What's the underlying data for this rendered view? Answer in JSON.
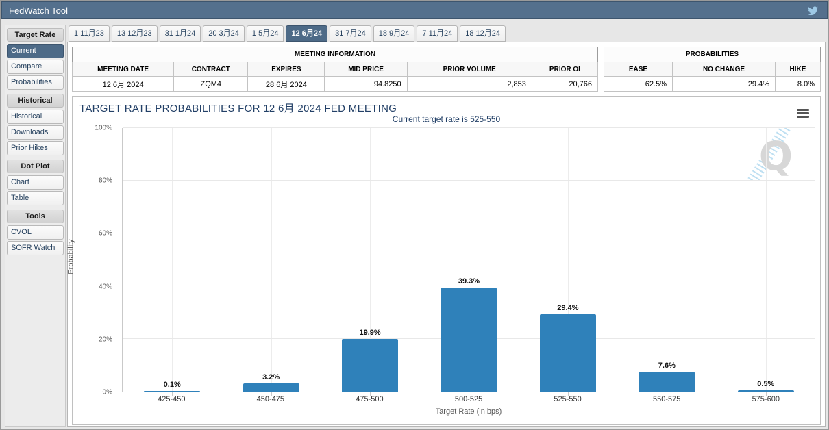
{
  "app": {
    "title": "FedWatch Tool",
    "twitter_icon": "twitter-bird"
  },
  "colors": {
    "header_bg": "#54708d",
    "accent": "#4d6a87",
    "bar": "#2f81ba",
    "chart_title": "#234067",
    "twitter": "#9ec9e6"
  },
  "sidebar": {
    "sections": [
      {
        "header": "Target Rate",
        "items": [
          {
            "label": "Current",
            "active": true
          },
          {
            "label": "Compare",
            "active": false
          },
          {
            "label": "Probabilities",
            "active": false
          }
        ]
      },
      {
        "header": "Historical",
        "items": [
          {
            "label": "Historical",
            "active": false
          },
          {
            "label": "Downloads",
            "active": false
          },
          {
            "label": "Prior Hikes",
            "active": false
          }
        ]
      },
      {
        "header": "Dot Plot",
        "items": [
          {
            "label": "Chart",
            "active": false
          },
          {
            "label": "Table",
            "active": false
          }
        ]
      },
      {
        "header": "Tools",
        "items": [
          {
            "label": "CVOL",
            "active": false
          },
          {
            "label": "SOFR Watch",
            "active": false
          }
        ]
      }
    ]
  },
  "tabs": {
    "items": [
      "1 11月23",
      "13 12月23",
      "31 1月24",
      "20 3月24",
      "1 5月24",
      "12 6月24",
      "31 7月24",
      "18 9月24",
      "7 11月24",
      "18 12月24"
    ],
    "active_index": 5
  },
  "meeting_info": {
    "title": "MEETING INFORMATION",
    "columns": [
      "MEETING DATE",
      "CONTRACT",
      "EXPIRES",
      "MID PRICE",
      "PRIOR VOLUME",
      "PRIOR OI"
    ],
    "values": [
      "12 6月 2024",
      "ZQM4",
      "28 6月 2024",
      "94.8250",
      "2,853",
      "20,766"
    ],
    "align": [
      "center",
      "center",
      "center",
      "right",
      "right",
      "right"
    ]
  },
  "probabilities": {
    "title": "PROBABILITIES",
    "columns": [
      "EASE",
      "NO CHANGE",
      "HIKE"
    ],
    "values": [
      "62.5%",
      "29.4%",
      "8.0%"
    ],
    "align": [
      "right",
      "right",
      "right"
    ]
  },
  "chart_data": {
    "type": "bar",
    "title": "TARGET RATE PROBABILITIES FOR 12 6月 2024 FED MEETING",
    "subtitle": "Current target rate is 525-550",
    "categories": [
      "425-450",
      "450-475",
      "475-500",
      "500-525",
      "525-550",
      "550-575",
      "575-600"
    ],
    "values": [
      0.1,
      3.2,
      19.9,
      39.3,
      29.4,
      7.6,
      0.5
    ],
    "labels": [
      "0.1%",
      "3.2%",
      "19.9%",
      "39.3%",
      "29.4%",
      "7.6%",
      "0.5%"
    ],
    "xlabel": "Target Rate (in bps)",
    "ylabel": "Probability",
    "ylim": [
      0,
      100
    ],
    "yticks": [
      0,
      20,
      40,
      60,
      80,
      100
    ],
    "ytick_labels": [
      "0%",
      "20%",
      "40%",
      "60%",
      "80%",
      "100%"
    ],
    "grid": true,
    "legend": "none",
    "bar_color": "#2f81ba",
    "menu_icon": "hamburger-icon",
    "watermark": "cme-q-logo"
  }
}
